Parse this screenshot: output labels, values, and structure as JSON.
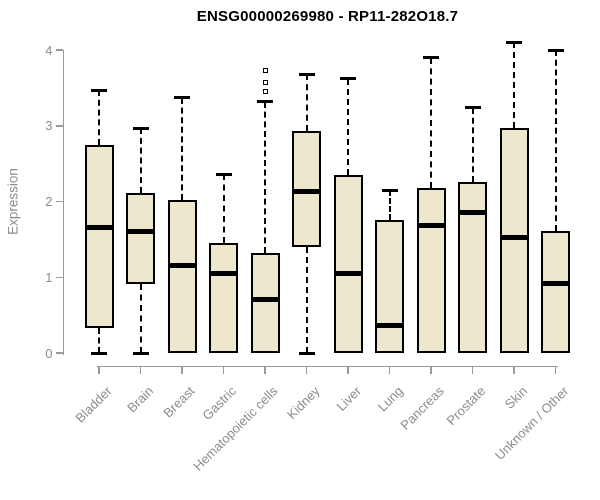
{
  "chart_data": {
    "type": "boxplot",
    "title": "ENSG00000269980 - RP11-282O18.7",
    "xlabel": "",
    "ylabel": "Expression",
    "ylim": [
      0,
      4
    ],
    "yticks": [
      "0",
      "1",
      "2",
      "3",
      "4"
    ],
    "grid": false,
    "legend": false,
    "categories": [
      "Bladder",
      "Brain",
      "Breast",
      "Gastric",
      "Hematopoietic cells",
      "Kidney",
      "Liver",
      "Lung",
      "Pancreas",
      "Prostate",
      "Skin",
      "Unknown / Other"
    ],
    "boxes": [
      {
        "category": "Bladder",
        "whisker_low": 0,
        "q1": 0.33,
        "median": 1.66,
        "q3": 2.75,
        "whisker_high": 3.47,
        "outliers": []
      },
      {
        "category": "Brain",
        "whisker_low": 0,
        "q1": 0.91,
        "median": 1.6,
        "q3": 2.11,
        "whisker_high": 2.97,
        "outliers": []
      },
      {
        "category": "Breast",
        "whisker_low": 0,
        "q1": 0.0,
        "median": 1.15,
        "q3": 2.02,
        "whisker_high": 3.37,
        "outliers": []
      },
      {
        "category": "Gastric",
        "whisker_low": 0,
        "q1": 0.0,
        "median": 1.05,
        "q3": 1.45,
        "whisker_high": 2.36,
        "outliers": []
      },
      {
        "category": "Hematopoietic cells",
        "whisker_low": 0,
        "q1": 0.0,
        "median": 0.7,
        "q3": 1.32,
        "whisker_high": 3.32,
        "outliers": [
          3.45,
          3.57,
          3.73
        ]
      },
      {
        "category": "Kidney",
        "whisker_low": 0,
        "q1": 1.4,
        "median": 2.13,
        "q3": 2.93,
        "whisker_high": 3.68,
        "outliers": []
      },
      {
        "category": "Liver",
        "whisker_low": 0,
        "q1": 0.0,
        "median": 1.05,
        "q3": 2.35,
        "whisker_high": 3.62,
        "outliers": []
      },
      {
        "category": "Lung",
        "whisker_low": 0,
        "q1": 0.0,
        "median": 0.36,
        "q3": 1.75,
        "whisker_high": 2.15,
        "outliers": []
      },
      {
        "category": "Pancreas",
        "whisker_low": 0,
        "q1": 0.0,
        "median": 1.68,
        "q3": 2.18,
        "whisker_high": 3.9,
        "outliers": []
      },
      {
        "category": "Prostate",
        "whisker_low": 0,
        "q1": 0.0,
        "median": 1.85,
        "q3": 2.26,
        "whisker_high": 3.24,
        "outliers": []
      },
      {
        "category": "Skin",
        "whisker_low": 0,
        "q1": 0.0,
        "median": 1.53,
        "q3": 2.97,
        "whisker_high": 4.1,
        "outliers": []
      },
      {
        "category": "Unknown / Other",
        "whisker_low": 0,
        "q1": 0.0,
        "median": 0.92,
        "q3": 1.61,
        "whisker_high": 4.0,
        "outliers": []
      }
    ],
    "colors": {
      "box_fill": "#EDE7CE",
      "box_stroke": "#000000",
      "median": "#000000",
      "whisker": "#000000",
      "axis_line": "#9A9A9A",
      "tick_text": "#8C8C8C",
      "title_text": "#000000",
      "background": "#FFFFFF"
    }
  }
}
